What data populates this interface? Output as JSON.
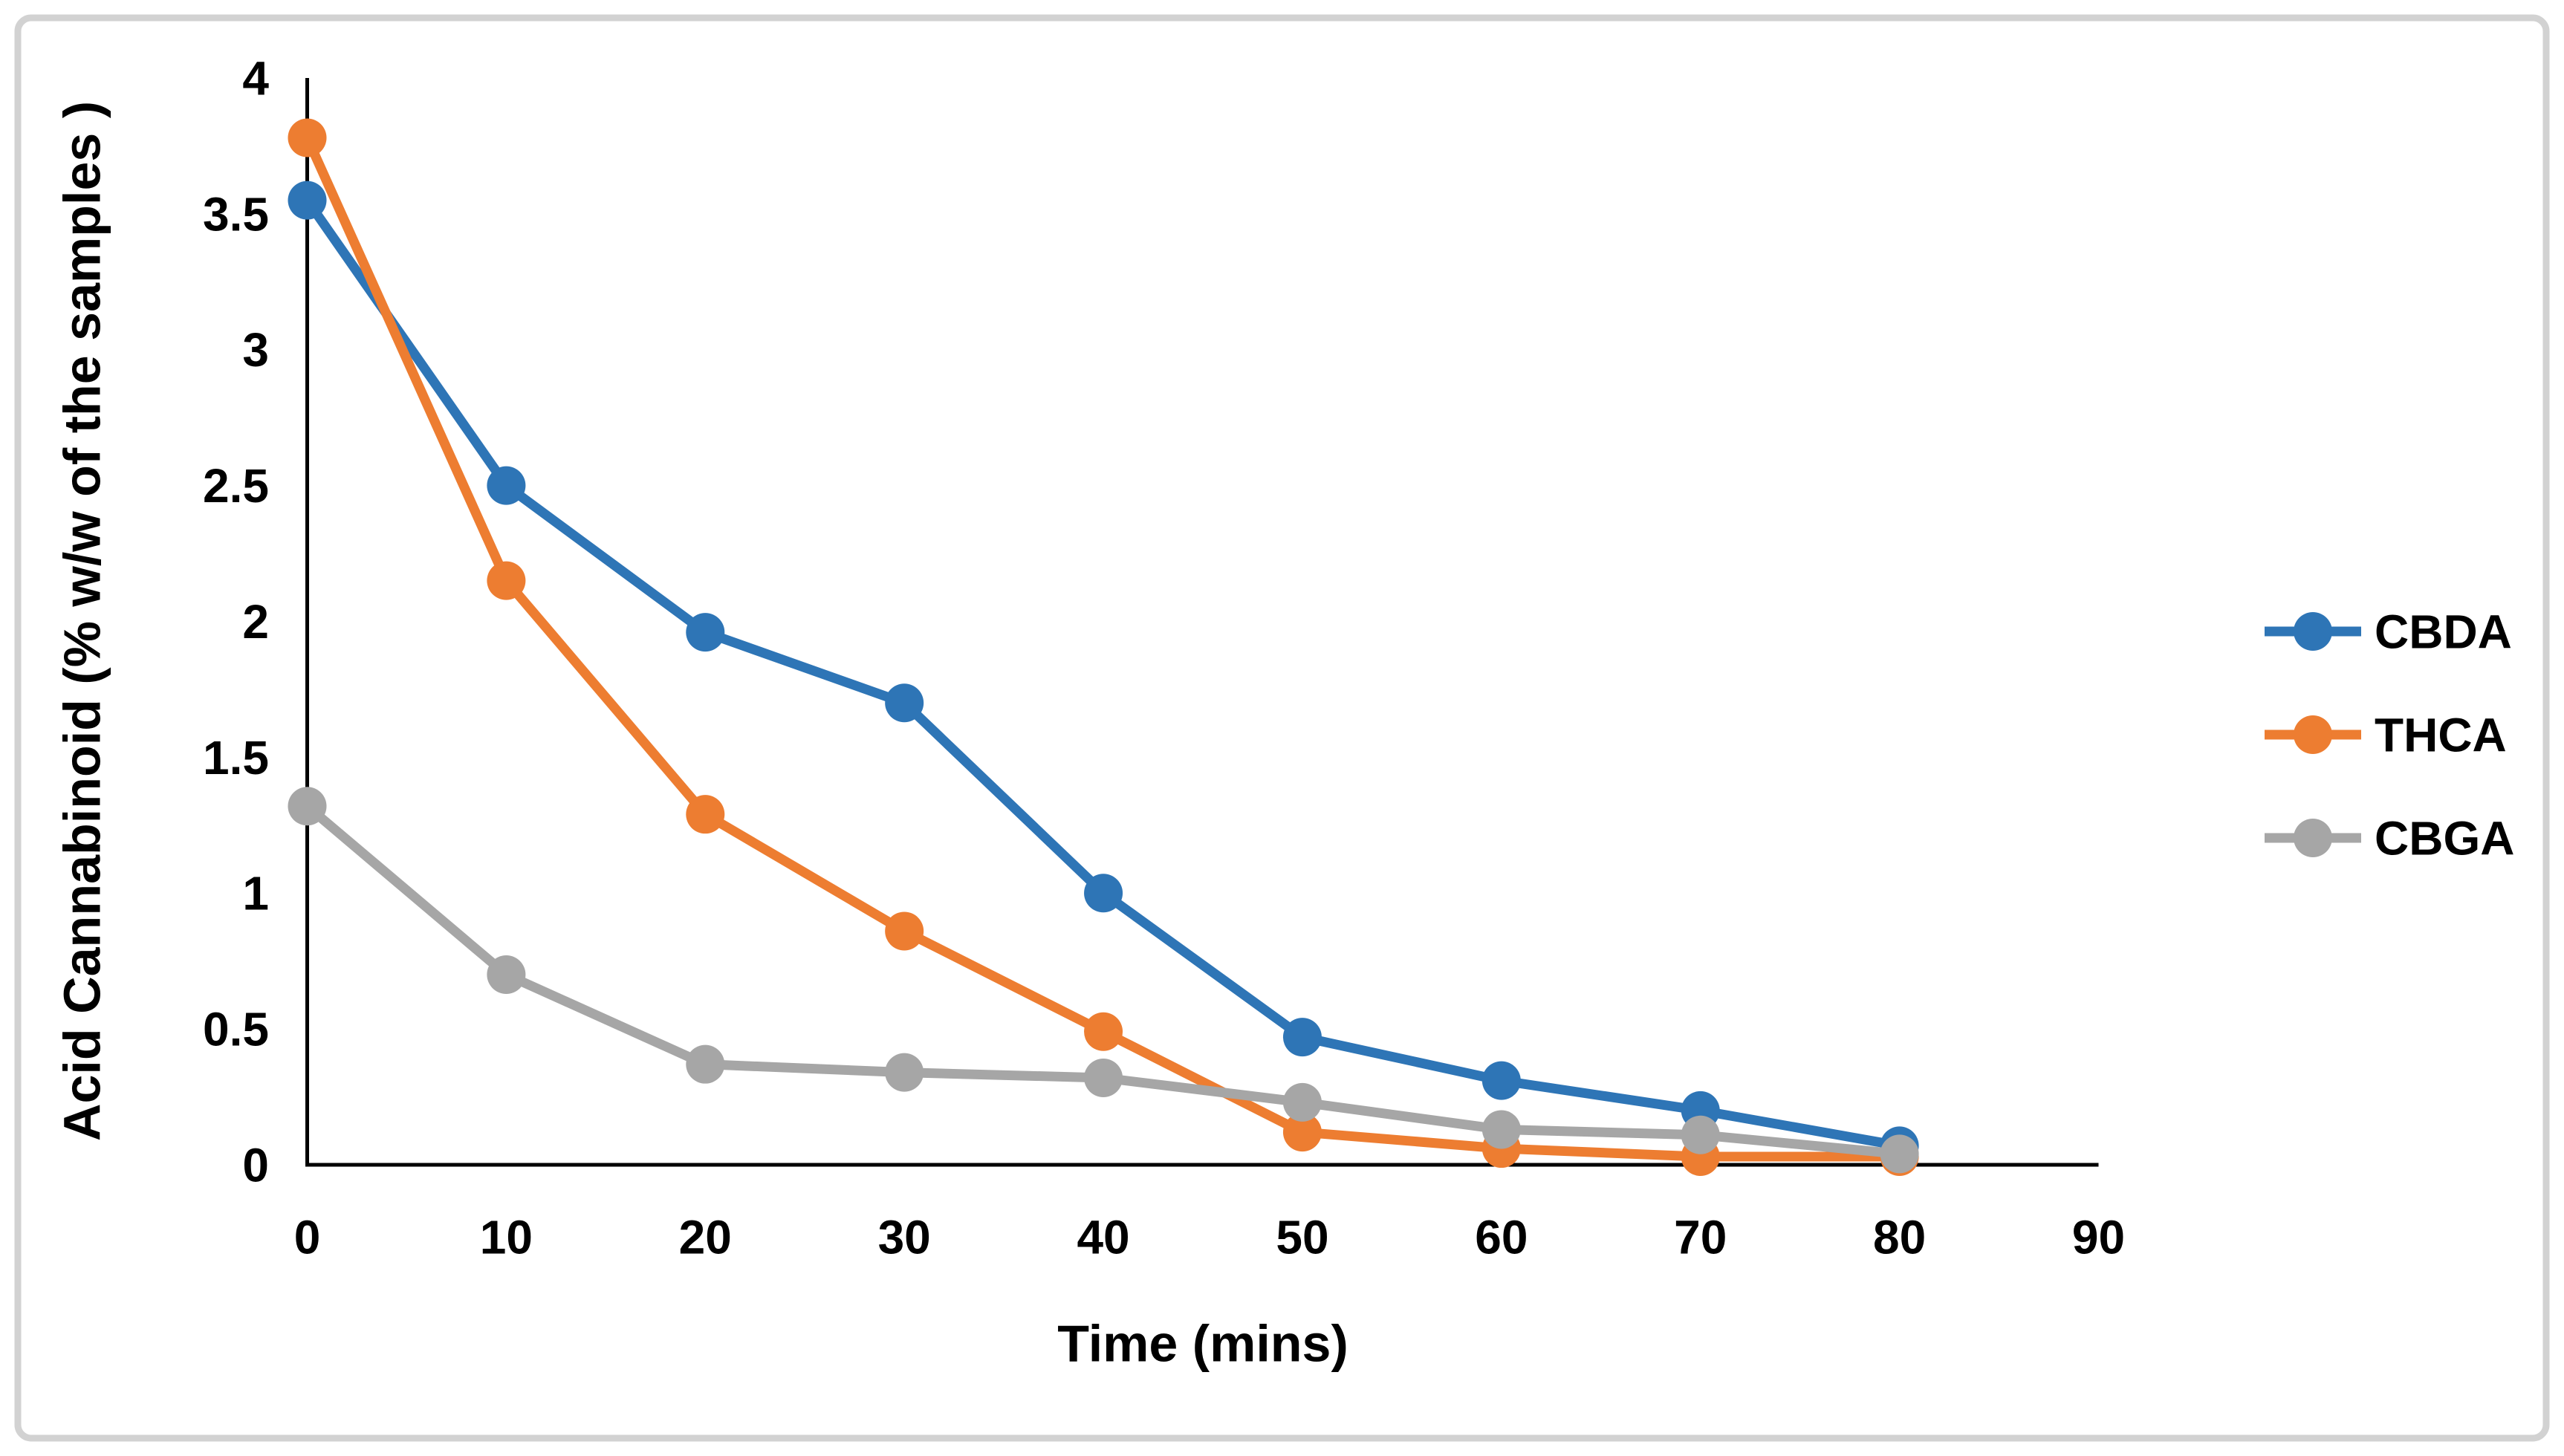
{
  "figure": {
    "background_color": "#FFFFFF",
    "border_color": "#D2D2D2",
    "axis_color": "#000000",
    "text_color": "#000000"
  },
  "chart_data": {
    "type": "line",
    "title": "",
    "xlabel": "Time (mins)",
    "ylabel": "Acid Cannabinoid (% w/w of the samples )",
    "x": [
      0,
      10,
      20,
      30,
      40,
      50,
      60,
      70,
      80
    ],
    "x_ticks": [
      0,
      10,
      20,
      30,
      40,
      50,
      60,
      70,
      80,
      90
    ],
    "y_ticks": [
      0,
      0.5,
      1,
      1.5,
      2,
      2.5,
      3,
      3.5,
      4
    ],
    "xlim": [
      0,
      90
    ],
    "ylim": [
      0,
      4
    ],
    "grid": false,
    "legend_position": "right",
    "marker": "circle",
    "series": [
      {
        "name": "CBDA",
        "color": "#2E75B6",
        "values": [
          3.55,
          2.5,
          1.96,
          1.7,
          1.0,
          0.47,
          0.31,
          0.2,
          0.07
        ]
      },
      {
        "name": "THCA",
        "color": "#ED7D31",
        "values": [
          3.78,
          2.15,
          1.29,
          0.86,
          0.49,
          0.12,
          0.06,
          0.03,
          0.03
        ]
      },
      {
        "name": "CBGA",
        "color": "#A6A6A6",
        "values": [
          1.32,
          0.7,
          0.37,
          0.34,
          0.32,
          0.23,
          0.13,
          0.11,
          0.04
        ]
      }
    ]
  }
}
